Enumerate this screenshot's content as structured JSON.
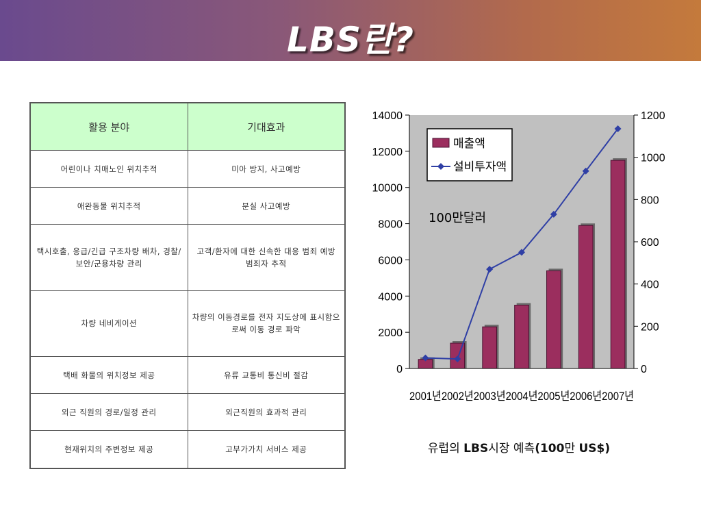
{
  "title": "LBS란?",
  "table": {
    "headers": [
      "활용 분야",
      "기대효과"
    ],
    "rows": [
      [
        "어린이나 치매노인 위치추적",
        "미아 방지, 사고예방"
      ],
      [
        "애완동물 위치추적",
        "분실 사고예방"
      ],
      [
        "택시호출, 응급/긴급 구조차량 배차, 경찰/보안/군용차량 관리",
        "고객/환자에 대한 신속한 대응 범죄 예방 범죄자 추적"
      ],
      [
        "차량 네비게이션",
        "차량의 이동경로를 전자 지도상에 표시함으로써 이동 경로 파악"
      ],
      [
        "택배 화물의 위치정보 제공",
        "유류 교통비 통신비 절감"
      ],
      [
        "외근 직원의 경로/일정 관리",
        "외근직원의 효과적 관리"
      ],
      [
        "현재위치의 주변정보 제공",
        "고부가가치 서비스 제공"
      ]
    ]
  },
  "caption": {
    "part1": "유럽의 ",
    "part2": "LBS",
    "part3": "시장 예측",
    "part4": "(100",
    "part5": "만 ",
    "part6": "US$)"
  },
  "chart_data": {
    "type": "bar",
    "categories": [
      "2001년",
      "2002년",
      "2003년",
      "2004년",
      "2005년",
      "2006년",
      "2007년"
    ],
    "series": [
      {
        "name": "매출액",
        "type": "bar",
        "axis": "left",
        "values": [
          500,
          1400,
          2300,
          3500,
          5400,
          7900,
          11500
        ]
      },
      {
        "name": "설비투자액",
        "type": "line",
        "axis": "right",
        "values": [
          50,
          45,
          470,
          550,
          730,
          935,
          1135
        ]
      }
    ],
    "annotation": "100만달러",
    "ylim": [
      0,
      14000
    ],
    "y2lim": [
      0,
      1200
    ],
    "yticks": [
      "0",
      "2000",
      "4000",
      "6000",
      "8000",
      "10000",
      "12000",
      "14000"
    ],
    "y2ticks": [
      "0",
      "200",
      "400",
      "600",
      "800",
      "1000",
      "1200"
    ],
    "legend": "top-left",
    "colors": {
      "bar": "#9b2e5e",
      "line": "#2f3fa5",
      "plot_bg": "#c0c0c0"
    }
  }
}
